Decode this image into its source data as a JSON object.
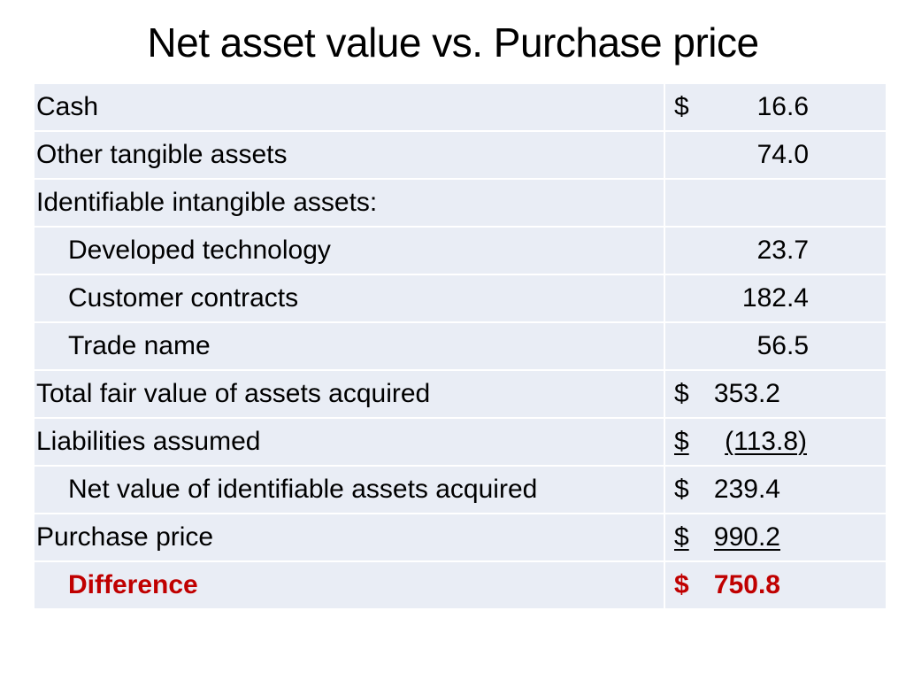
{
  "title": "Net asset value vs. Purchase price",
  "rows": [
    {
      "label": "Cash",
      "currency": "$",
      "value": "16.6"
    },
    {
      "label": "Other tangible assets",
      "currency": "",
      "value": "74.0"
    },
    {
      "label": "Identifiable intangible assets:",
      "currency": "",
      "value": ""
    },
    {
      "label": "Developed technology",
      "currency": "",
      "value": "23.7"
    },
    {
      "label": "Customer contracts",
      "currency": "",
      "value": "182.4"
    },
    {
      "label": "Trade name",
      "currency": "",
      "value": "56.5"
    },
    {
      "label": "Total fair value of assets acquired",
      "currency": "$",
      "value": "353.2"
    },
    {
      "label": "Liabilities assumed",
      "currency": "$",
      "value": "(113.8)"
    },
    {
      "label": "Net value of identifiable assets acquired",
      "currency": "$",
      "value": "239.4"
    },
    {
      "label": "Purchase price",
      "currency": "$",
      "value": "990.2"
    },
    {
      "label": "Difference",
      "currency": "$",
      "value": "750.8"
    }
  ],
  "colors": {
    "cell_background": "#e9edf5",
    "highlight": "#c00000"
  }
}
